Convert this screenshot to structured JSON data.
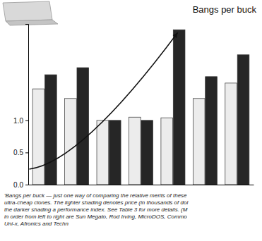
{
  "chart_data": {
    "type": "bar",
    "title": "Bangs per buck",
    "categories": [
      null,
      null,
      null,
      null,
      null,
      null,
      null
    ],
    "series": [
      {
        "color": "#ececec",
        "values": [
          1.49,
          1.34,
          1.0,
          1.05,
          1.04,
          1.34,
          1.58
        ]
      },
      {
        "color": "#262626",
        "values": [
          1.71,
          1.82,
          1.0,
          1.0,
          2.41,
          1.68,
          2.02
        ]
      }
    ],
    "ylim": [
      0,
      2.5
    ],
    "yticks": [
      {
        "value": 0,
        "label": "0.0"
      },
      {
        "value": 0.5,
        "label": "0.5"
      },
      {
        "value": 1,
        "label": "1.0"
      }
    ],
    "grid": false,
    "tick_labels": "y",
    "caption": [
      "'Bangs per buck — just one way of comparing the relative merits of these",
      "ultra-cheap clones. The lighter shading denotes price (in thousands of dol",
      "the darker shading a performance index. See Table 3 for more details. (M",
      "in order from left to right are Sun Megato, Rod Irving, MicroDOS, Commo",
      "Uni-x, Afronics and Techn"
    ]
  }
}
